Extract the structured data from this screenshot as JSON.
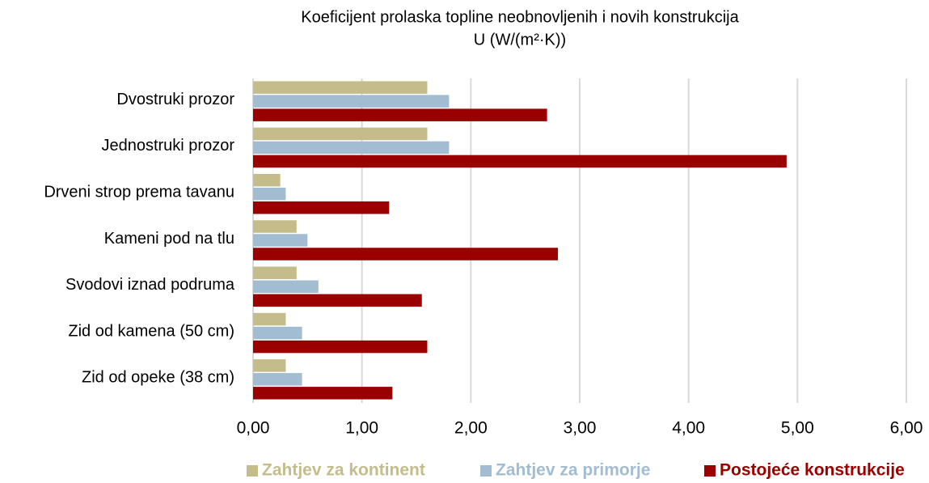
{
  "chart_data": {
    "type": "bar",
    "orientation": "horizontal",
    "title": "Koeficijent prolaska topline neobnovljenih i novih konstrukcija",
    "subtitle": "U (W/(m²·K))",
    "categories": [
      "Dvostruki prozor",
      "Jednostruki prozor",
      "Drveni strop prema tavanu",
      "Kameni pod na tlu",
      "Svodovi iznad podruma",
      "Zid od kamena (50 cm)",
      "Zid od opeke (38 cm)"
    ],
    "series": [
      {
        "name": "Zahtjev za kontinent",
        "color": "#c4bd8b",
        "values": [
          1.6,
          1.6,
          0.25,
          0.4,
          0.4,
          0.3,
          0.3
        ]
      },
      {
        "name": "Zahtjev za primorje",
        "color": "#a2bdd1",
        "values": [
          1.8,
          1.8,
          0.3,
          0.5,
          0.6,
          0.45,
          0.45
        ]
      },
      {
        "name": "Postojeće konstrukcije",
        "color": "#9b0000",
        "values": [
          2.7,
          4.9,
          1.25,
          2.8,
          1.55,
          1.6,
          1.28
        ]
      }
    ],
    "xlim": [
      0,
      6
    ],
    "xticks": [
      {
        "value": 0,
        "label": "0,00"
      },
      {
        "value": 1,
        "label": "1,00"
      },
      {
        "value": 2,
        "label": "2,00"
      },
      {
        "value": 3,
        "label": "3,00"
      },
      {
        "value": 4,
        "label": "4,00"
      },
      {
        "value": 5,
        "label": "5,00"
      },
      {
        "value": 6,
        "label": "6,00"
      }
    ],
    "grid": true,
    "legend": "bottom"
  }
}
